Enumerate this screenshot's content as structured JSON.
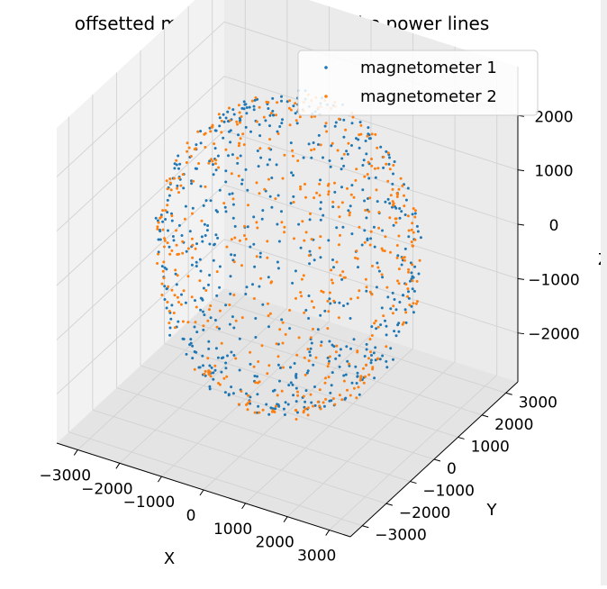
{
  "chart_data": {
    "type": "scatter",
    "projection": "3d",
    "title": "offsetted measurement under the power lines",
    "xlabel": "X",
    "ylabel": "Y",
    "zlabel": "Z",
    "xlim": [
      -3500,
      3500
    ],
    "ylim": [
      -3500,
      3500
    ],
    "zlim": [
      -2900,
      2900
    ],
    "xticks": [
      -3000,
      -2000,
      -1000,
      0,
      1000,
      2000,
      3000
    ],
    "yticks": [
      -3000,
      -2000,
      -1000,
      0,
      1000,
      2000,
      3000
    ],
    "zticks": [
      -2000,
      -1000,
      0,
      1000,
      2000
    ],
    "xtick_labels": [
      "−3000",
      "−2000",
      "−1000",
      "0",
      "1000",
      "2000",
      "3000"
    ],
    "ytick_labels": [
      "−3000",
      "−2000",
      "−1000",
      "0",
      "1000",
      "2000",
      "3000"
    ],
    "ztick_labels": [
      "−2000",
      "−1000",
      "0",
      "1000",
      "2000"
    ],
    "grid": true,
    "legend_position": "top-right",
    "series": [
      {
        "name": "magnetometer 1",
        "color": "#1f77b4",
        "shape": "approximately spherical shell",
        "radius": 2700,
        "point_count": 600
      },
      {
        "name": "magnetometer 2",
        "color": "#ff7f0e",
        "shape": "approximately spherical shell",
        "radius": 2700,
        "point_count": 500
      }
    ]
  }
}
